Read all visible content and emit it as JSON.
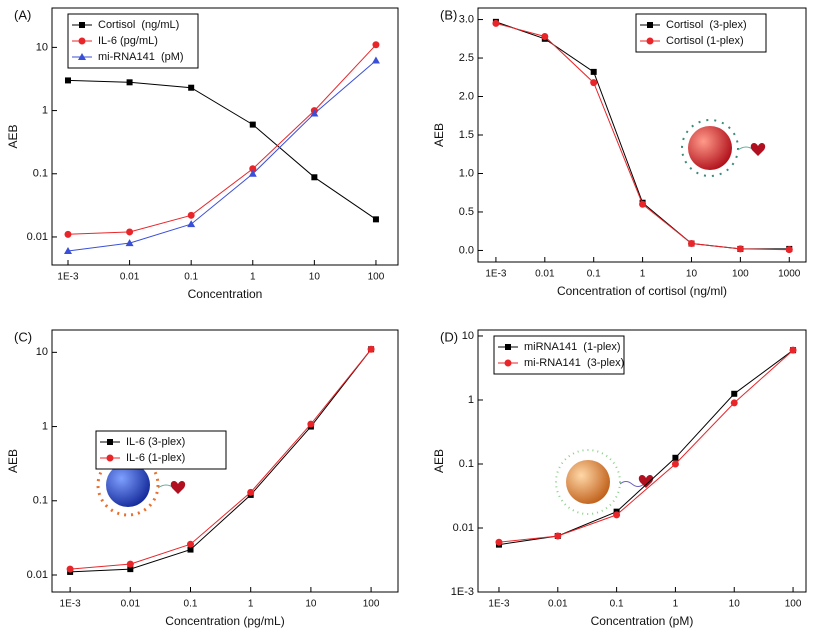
{
  "chart_data": [
    {
      "type": "line",
      "panel_label": "(A)",
      "x_label": "Concentration",
      "y_label": "AEB",
      "xscale": "log",
      "yscale": "log",
      "legend": "upper left",
      "xlim": [
        0.00055,
        228
      ],
      "ylim": [
        0.0036,
        42
      ],
      "xticks": [
        {
          "value": 0.001,
          "label": "1E-3"
        },
        0.01,
        0.1,
        1,
        10,
        100
      ],
      "yticks": [
        0.01,
        0.1,
        1,
        10
      ],
      "x": [
        0.001,
        0.01,
        0.1,
        1,
        10,
        100
      ],
      "series": [
        {
          "name": "Cortisol  (ng/mL)",
          "color": "#000000",
          "marker": "square",
          "values": [
            3.0,
            2.8,
            2.3,
            0.6,
            0.088,
            0.019
          ]
        },
        {
          "name": "IL-6 (pg/mL)",
          "color": "#e8262a",
          "marker": "circle",
          "values": [
            0.011,
            0.012,
            0.022,
            0.12,
            1.0,
            11
          ]
        },
        {
          "name": "mi-RNA141  (pM)",
          "color": "#3a4fd8",
          "marker": "triangle",
          "values": [
            0.006,
            0.008,
            0.016,
            0.1,
            0.9,
            6.2
          ]
        }
      ]
    },
    {
      "type": "line",
      "panel_label": "(B)",
      "x_label": "Concentration of cortisol (ng/ml)",
      "y_label": "AEB",
      "xscale": "log",
      "yscale": "linear",
      "legend": "upper right",
      "xlim": [
        0.00043,
        2200
      ],
      "ylim": [
        -0.15,
        3.15
      ],
      "xticks": [
        {
          "value": 0.001,
          "label": "1E-3"
        },
        0.01,
        0.1,
        1,
        10,
        100,
        1000
      ],
      "yticks": [
        {
          "value": 0,
          "label": "0.0"
        },
        0.5,
        {
          "value": 1,
          "label": "1.0"
        },
        1.5,
        {
          "value": 2,
          "label": "2.0"
        },
        2.5,
        {
          "value": 3,
          "label": "3.0"
        }
      ],
      "x": [
        0.001,
        0.01,
        0.1,
        1,
        10,
        100,
        1000
      ],
      "series": [
        {
          "name": "Cortisol  (3-plex)",
          "color": "#000000",
          "marker": "square",
          "values": [
            2.97,
            2.75,
            2.32,
            0.62,
            0.09,
            0.02,
            0.02
          ]
        },
        {
          "name": "Cortisol (1-plex)",
          "color": "#e8262a",
          "marker": "circle",
          "values": [
            2.95,
            2.78,
            2.18,
            0.6,
            0.09,
            0.02,
            0.01
          ]
        }
      ]
    },
    {
      "type": "line",
      "panel_label": "(C)",
      "x_label": "Concentration (pg/mL)",
      "y_label": "AEB",
      "xscale": "log",
      "yscale": "log",
      "legend": "center left",
      "xlim": [
        0.0005,
        280
      ],
      "ylim": [
        0.0059,
        20
      ],
      "xticks": [
        {
          "value": 0.001,
          "label": "1E-3"
        },
        0.01,
        0.1,
        1,
        10,
        100
      ],
      "yticks": [
        0.01,
        0.1,
        1,
        10
      ],
      "x": [
        0.001,
        0.01,
        0.1,
        1,
        10,
        100
      ],
      "series": [
        {
          "name": "IL-6 (3-plex)",
          "color": "#000000",
          "marker": "square",
          "values": [
            0.011,
            0.012,
            0.022,
            0.12,
            1.0,
            11
          ]
        },
        {
          "name": "IL-6 (1-plex)",
          "color": "#e8262a",
          "marker": "circle",
          "values": [
            0.012,
            0.014,
            0.026,
            0.13,
            1.08,
            11
          ]
        }
      ]
    },
    {
      "type": "line",
      "panel_label": "(D)",
      "x_label": "Concentration (pM)",
      "y_label": "AEB",
      "xscale": "log",
      "yscale": "log",
      "legend": "upper left",
      "xlim": [
        0.00044,
        166
      ],
      "ylim": [
        0.001,
        12.4
      ],
      "xticks": [
        {
          "value": 0.001,
          "label": "1E-3"
        },
        0.01,
        0.1,
        1,
        10,
        100
      ],
      "yticks": [
        {
          "value": 0.001,
          "label": "1E-3"
        },
        0.01,
        0.1,
        1,
        10
      ],
      "x": [
        0.001,
        0.01,
        0.1,
        1,
        10,
        100
      ],
      "series": [
        {
          "name": "miRNA141  (1-plex)",
          "color": "#000000",
          "marker": "square",
          "values": [
            0.0055,
            0.0075,
            0.018,
            0.125,
            1.25,
            6.0
          ]
        },
        {
          "name": "mi-RNA141  (3-plex)",
          "color": "#e8262a",
          "marker": "circle",
          "values": [
            0.006,
            0.0075,
            0.016,
            0.1,
            0.9,
            6.0
          ]
        }
      ]
    }
  ]
}
